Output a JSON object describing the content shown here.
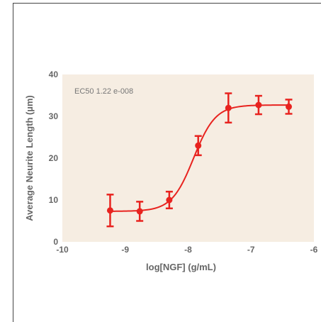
{
  "chart_data": {
    "type": "scatter",
    "title": "",
    "xlabel": "log[NGF] (g/mL)",
    "ylabel": "Average Neurite Length (µm)",
    "xlim": [
      -10,
      -6
    ],
    "ylim": [
      0,
      40
    ],
    "xticks": [
      "-10",
      "-9",
      "-8",
      "-7",
      "-6"
    ],
    "yticks": [
      "0",
      "10",
      "20",
      "30",
      "40"
    ],
    "annotation": "EC50 1.22 e-008",
    "grid": false,
    "background_color": "#f6ede2",
    "series_color": "#e8231f",
    "points": [
      {
        "x": -9.24,
        "y": 7.5,
        "err": 3.8
      },
      {
        "x": -8.77,
        "y": 7.3,
        "err": 2.3
      },
      {
        "x": -8.3,
        "y": 10.0,
        "err": 2.0
      },
      {
        "x": -7.84,
        "y": 23.0,
        "err": 2.3
      },
      {
        "x": -7.36,
        "y": 32.0,
        "err": 3.5
      },
      {
        "x": -6.88,
        "y": 32.7,
        "err": 2.2
      },
      {
        "x": -6.4,
        "y": 32.3,
        "err": 1.7
      }
    ],
    "fit": {
      "bottom": 7.3,
      "top": 32.7,
      "ec50": 1.22e-08,
      "hill": 2.5
    }
  }
}
